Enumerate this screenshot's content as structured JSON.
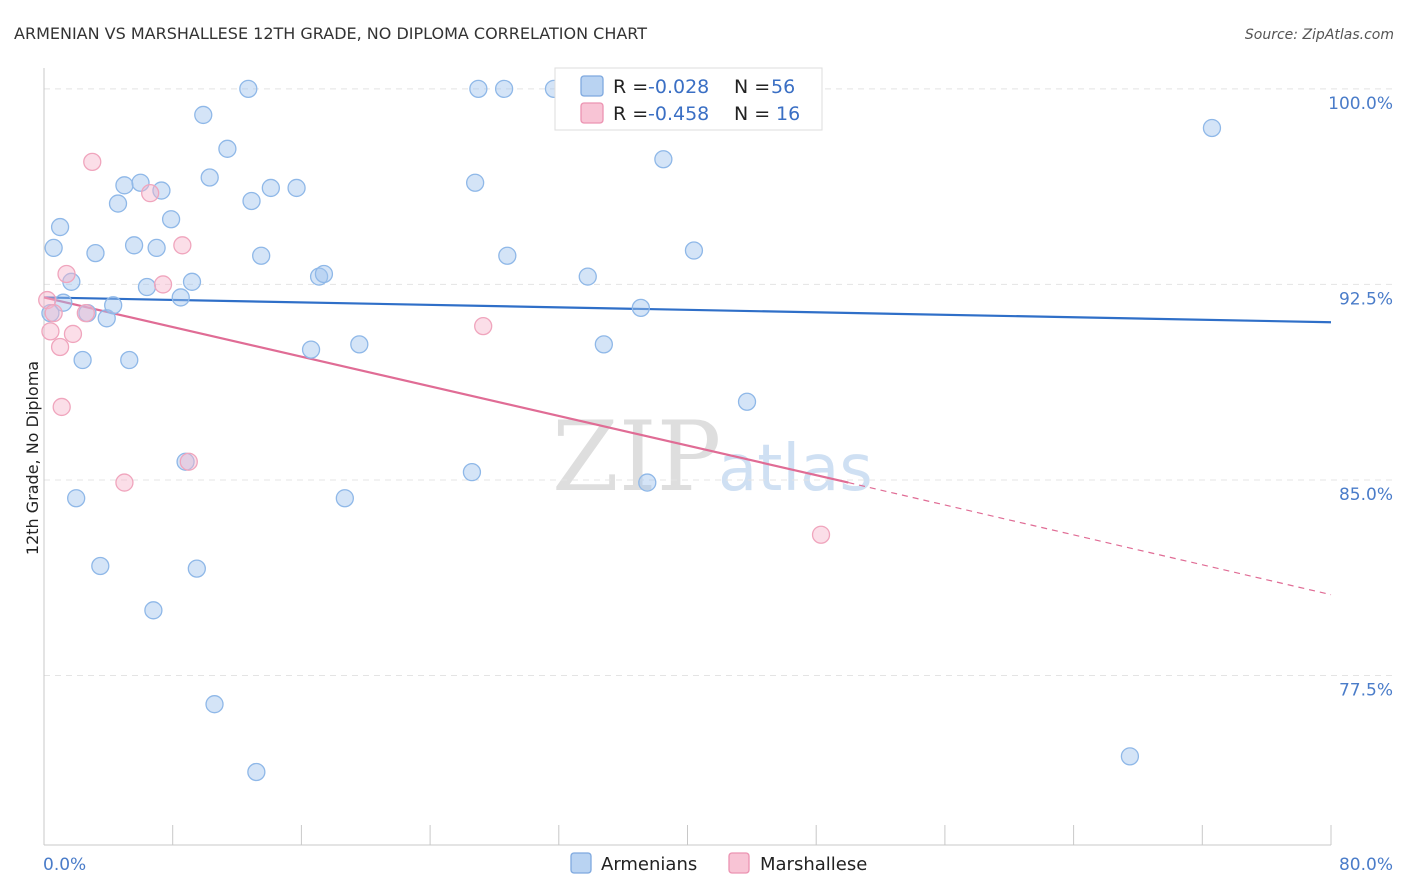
{
  "chart_data": {
    "type": "scatter",
    "title": "ARMENIAN VS MARSHALLESE 12TH GRADE, NO DIPLOMA CORRELATION CHART",
    "source": "Source: ZipAtlas.com",
    "ylabel": "12th Grade, No Diploma",
    "xlim": [
      0,
      80
    ],
    "ylim": [
      71.0,
      100.8
    ],
    "x_tick_labels": [
      "0.0%",
      "80.0%"
    ],
    "y_ticks": [
      {
        "value": 100.0,
        "label": "100.0%"
      },
      {
        "value": 92.5,
        "label": "92.5%"
      },
      {
        "value": 85.0,
        "label": "85.0%"
      },
      {
        "value": 77.5,
        "label": "77.5%"
      }
    ],
    "watermark": {
      "zip": "ZIP",
      "atlas": "atlas"
    },
    "legend": {
      "r_label": "R =",
      "n_label": "N =",
      "entries": [
        {
          "r": "-0.028",
          "n": "56"
        },
        {
          "r": "-0.458",
          "n": "16"
        }
      ]
    },
    "series": [
      {
        "name": "Armenians",
        "color": "#8fb8e8",
        "fill": "rgba(160,196,238,0.45)",
        "trend_color": "#2f6fc8",
        "trend": {
          "x0": 0,
          "y0": 92.0,
          "x1": 80,
          "y1": 91.05
        },
        "points": [
          [
            0.6,
            93.9
          ],
          [
            1.0,
            94.7
          ],
          [
            1.2,
            91.8
          ],
          [
            1.7,
            92.6
          ],
          [
            2.0,
            84.3
          ],
          [
            2.4,
            89.6
          ],
          [
            2.7,
            91.4
          ],
          [
            3.2,
            93.7
          ],
          [
            3.5,
            81.7
          ],
          [
            3.9,
            91.2
          ],
          [
            4.3,
            91.7
          ],
          [
            4.6,
            95.6
          ],
          [
            5.0,
            96.3
          ],
          [
            5.3,
            89.6
          ],
          [
            5.6,
            94.0
          ],
          [
            6.0,
            96.4
          ],
          [
            6.4,
            92.4
          ],
          [
            6.8,
            80.0
          ],
          [
            7.0,
            93.9
          ],
          [
            7.3,
            96.1
          ],
          [
            7.9,
            95.0
          ],
          [
            8.5,
            92.0
          ],
          [
            8.8,
            85.7
          ],
          [
            9.2,
            92.6
          ],
          [
            9.5,
            81.6
          ],
          [
            9.9,
            99.0
          ],
          [
            10.3,
            96.6
          ],
          [
            10.6,
            76.4
          ],
          [
            11.4,
            97.7
          ],
          [
            12.7,
            100.0
          ],
          [
            12.9,
            95.7
          ],
          [
            13.2,
            73.8
          ],
          [
            13.5,
            93.6
          ],
          [
            14.1,
            96.2
          ],
          [
            15.7,
            96.2
          ],
          [
            16.6,
            90.0
          ],
          [
            17.1,
            92.8
          ],
          [
            17.4,
            92.9
          ],
          [
            18.7,
            84.3
          ],
          [
            19.6,
            90.2
          ],
          [
            26.6,
            85.3
          ],
          [
            26.8,
            96.4
          ],
          [
            27.0,
            100.0
          ],
          [
            28.6,
            100.0
          ],
          [
            28.8,
            93.6
          ],
          [
            31.7,
            100.0
          ],
          [
            33.8,
            92.8
          ],
          [
            34.8,
            90.2
          ],
          [
            37.1,
            91.6
          ],
          [
            37.5,
            84.9
          ],
          [
            38.5,
            97.3
          ],
          [
            40.4,
            93.8
          ],
          [
            43.7,
            88.0
          ],
          [
            67.5,
            74.4
          ],
          [
            72.6,
            98.5
          ],
          [
            0.4,
            91.4
          ]
        ]
      },
      {
        "name": "Marshallese",
        "color": "#f0a5bd",
        "fill": "rgba(246,182,204,0.45)",
        "trend_color": "#e06c95",
        "trend": {
          "x0": 0,
          "y0": 92.0,
          "x1": 50,
          "y1": 84.9
        },
        "trend_dashed": {
          "x0": 50,
          "y0": 84.9,
          "x1": 80,
          "y1": 80.6
        },
        "points": [
          [
            0.2,
            91.9
          ],
          [
            0.4,
            90.7
          ],
          [
            0.6,
            91.4
          ],
          [
            1.0,
            90.1
          ],
          [
            1.1,
            87.8
          ],
          [
            1.4,
            92.9
          ],
          [
            1.8,
            90.6
          ],
          [
            2.6,
            91.4
          ],
          [
            3.0,
            97.2
          ],
          [
            5.0,
            84.9
          ],
          [
            6.6,
            96.0
          ],
          [
            7.4,
            92.5
          ],
          [
            8.6,
            94.0
          ],
          [
            9.0,
            85.7
          ],
          [
            27.3,
            90.9
          ],
          [
            48.3,
            82.9
          ]
        ]
      }
    ]
  }
}
